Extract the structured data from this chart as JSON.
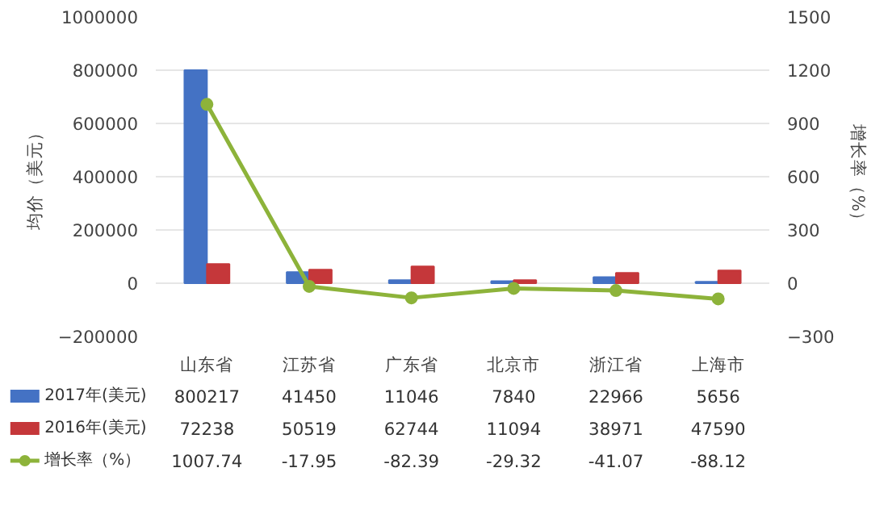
{
  "chart_data": {
    "type": "bar",
    "categories": [
      "山东省",
      "江苏省",
      "广东省",
      "北京市",
      "浙江省",
      "上海市"
    ],
    "ylabel": "均价（美元）",
    "y2label": "增长率（%）",
    "series": [
      {
        "name": "2017年(美元)",
        "color": "#4472c4",
        "values": [
          800217,
          41450,
          11046,
          7840,
          22966,
          5656
        ]
      },
      {
        "name": "2016年(美元)",
        "color": "#c5373a",
        "values": [
          72238,
          50519,
          62744,
          11094,
          38971,
          47590
        ]
      },
      {
        "name": "增长率（%）",
        "type": "line",
        "axis": "y2",
        "color": "#8db33a",
        "marker": "circle",
        "values": [
          1007.74,
          -17.95,
          -82.39,
          -29.32,
          -41.07,
          -88.12
        ]
      }
    ],
    "ylim": [
      -200000,
      1000000
    ],
    "yticks": [
      -200000,
      0,
      200000,
      400000,
      600000,
      800000,
      1000000
    ],
    "y2lim": [
      -300,
      1500
    ],
    "y2ticks": [
      -300,
      0,
      300,
      600,
      900,
      1200,
      1500
    ],
    "grid": "y",
    "legend": "bottom",
    "data_labels": true
  }
}
